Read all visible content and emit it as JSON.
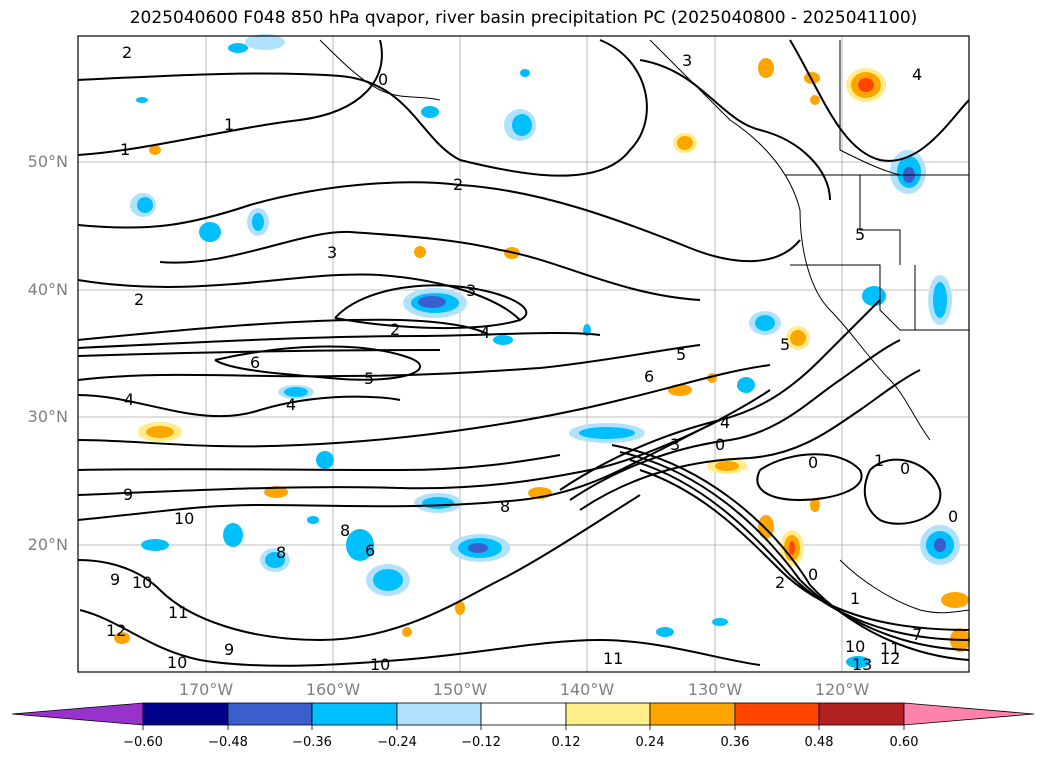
{
  "title": "2025040600 F048 850 hPa qvapor, river basin precipitation PC (2025040800 - 2025041100)",
  "lat_labels": [
    "50°N",
    "40°N",
    "30°N",
    "20°N"
  ],
  "lon_labels": [
    "170°W",
    "160°W",
    "150°W",
    "140°W",
    "130°W",
    "120°W"
  ],
  "colorbar": {
    "tick_labels": [
      "−0.60",
      "−0.48",
      "−0.36",
      "−0.24",
      "−0.12",
      "0.12",
      "0.24",
      "0.36",
      "0.48",
      "0.60"
    ],
    "colors": [
      "#9932cc",
      "#00008b",
      "#3a5fcd",
      "#00bfff",
      "#b0e2ff",
      "#ffffff",
      "#ffec8b",
      "#ffa500",
      "#ff4500",
      "#b22222",
      "#ff82ab"
    ]
  },
  "contour_labels": [
    "2",
    "0",
    "1",
    "1",
    "3",
    "2",
    "3",
    "3",
    "2",
    "4",
    "5",
    "6",
    "5",
    "6",
    "4",
    "4",
    "2",
    "9",
    "10",
    "8",
    "8",
    "8",
    "6",
    "9",
    "10",
    "11",
    "12",
    "9",
    "10",
    "11",
    "10",
    "4",
    "0",
    "0",
    "2",
    "1",
    "3",
    "0",
    "1",
    "0",
    "0",
    "11",
    "12",
    "10",
    "13",
    "7",
    "5",
    "5",
    "4"
  ],
  "colors": {
    "field_blue_light": "#b0e2ff",
    "field_blue": "#00bfff",
    "field_blue_dark": "#3a5fcd",
    "field_yellow": "#ffec8b",
    "field_orange": "#ffa500",
    "field_red": "#ff4500",
    "grid": "#aaaaaa",
    "tick_text": "#808080"
  }
}
